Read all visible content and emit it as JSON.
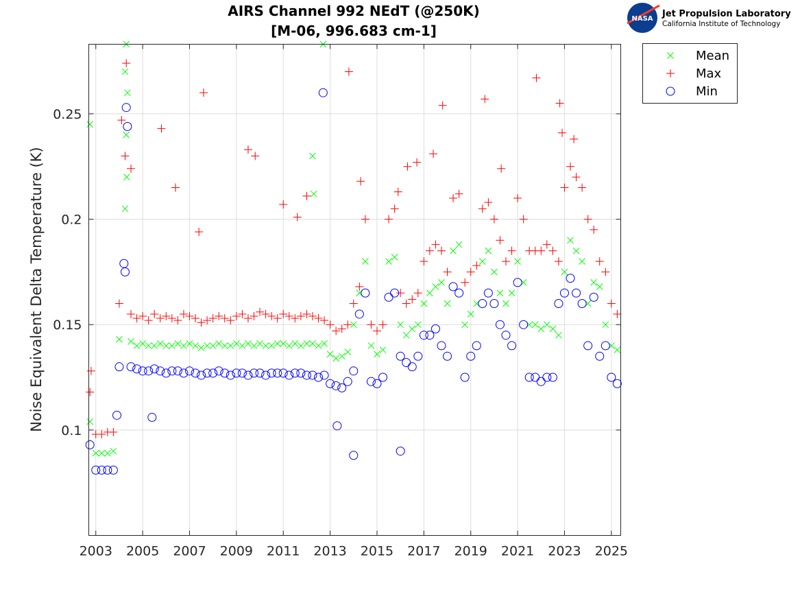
{
  "logo": {
    "emblem": "NASA",
    "name": "Jet Propulsion Laboratory",
    "subtitle": "California Institute of Technology"
  },
  "chart_data": {
    "type": "scatter",
    "title": [
      "AIRS Channel 992 NEdT (@250K)",
      "[M-06, 996.683 cm-1]"
    ],
    "xlabel": "",
    "ylabel": "Noise Equivalent Delta Temperature (K)",
    "xlim": [
      2002.7,
      2025.4
    ],
    "ylim": [
      0.05,
      0.283
    ],
    "x_ticks": [
      2003,
      2005,
      2007,
      2009,
      2011,
      2013,
      2015,
      2017,
      2019,
      2021,
      2023,
      2025
    ],
    "x_tick_labels": [
      "2003",
      "2005",
      "2007",
      "2009",
      "2011",
      "2013",
      "2015",
      "2017",
      "2019",
      "2021",
      "2023",
      "2025"
    ],
    "y_ticks": [
      0.1,
      0.15,
      0.2,
      0.25
    ],
    "y_tick_labels": [
      "0.1",
      "0.15",
      "0.2",
      "0.25"
    ],
    "grid": true,
    "legend_position": "outside-top-right",
    "legend": [
      "Mean",
      "Max",
      "Min"
    ],
    "colors": {
      "Mean": "#00ff00",
      "Max": "#ff0000",
      "Min": "#0000ff"
    },
    "markers": {
      "Mean": "x",
      "Max": "+",
      "Min": "o"
    },
    "x": [
      2002.75,
      2003.0,
      2003.25,
      2003.5,
      2003.75,
      2004.0,
      2004.25,
      2004.5,
      2004.75,
      2005.0,
      2005.25,
      2005.5,
      2005.75,
      2006.0,
      2006.25,
      2006.5,
      2006.75,
      2007.0,
      2007.25,
      2007.5,
      2007.75,
      2008.0,
      2008.25,
      2008.5,
      2008.75,
      2009.0,
      2009.25,
      2009.5,
      2009.75,
      2010.0,
      2010.25,
      2010.5,
      2010.75,
      2011.0,
      2011.25,
      2011.5,
      2011.75,
      2012.0,
      2012.25,
      2012.5,
      2012.75,
      2013.0,
      2013.25,
      2013.5,
      2013.75,
      2014.0,
      2014.25,
      2014.5,
      2014.75,
      2015.0,
      2015.25,
      2015.5,
      2015.75,
      2016.0,
      2016.25,
      2016.5,
      2016.75,
      2017.0,
      2017.25,
      2017.5,
      2017.75,
      2018.0,
      2018.25,
      2018.5,
      2018.75,
      2019.0,
      2019.25,
      2019.5,
      2019.75,
      2020.0,
      2020.25,
      2020.5,
      2020.75,
      2021.0,
      2021.25,
      2021.5,
      2021.75,
      2022.0,
      2022.25,
      2022.5,
      2022.75,
      2023.0,
      2023.25,
      2023.5,
      2023.75,
      2024.0,
      2024.25,
      2024.5,
      2024.75,
      2025.0,
      2025.25
    ],
    "series": [
      {
        "name": "Mean",
        "values": [
          0.104,
          0.089,
          0.089,
          0.089,
          0.09,
          0.143,
          0.27,
          0.142,
          0.14,
          0.141,
          0.14,
          0.14,
          0.141,
          0.14,
          0.14,
          0.141,
          0.14,
          0.141,
          0.14,
          0.139,
          0.14,
          0.14,
          0.141,
          0.14,
          0.14,
          0.141,
          0.14,
          0.141,
          0.14,
          0.141,
          0.14,
          0.14,
          0.141,
          0.141,
          0.14,
          0.141,
          0.14,
          0.141,
          0.141,
          0.14,
          0.141,
          0.136,
          0.134,
          0.135,
          0.137,
          0.15,
          0.165,
          0.18,
          0.14,
          0.136,
          0.138,
          0.18,
          0.182,
          0.15,
          0.145,
          0.148,
          0.15,
          0.16,
          0.165,
          0.168,
          0.17,
          0.16,
          0.185,
          0.188,
          0.15,
          0.155,
          0.16,
          0.18,
          0.185,
          0.175,
          0.165,
          0.16,
          0.165,
          0.18,
          0.17,
          0.15,
          0.15,
          0.148,
          0.15,
          0.148,
          0.145,
          0.175,
          0.19,
          0.185,
          0.18,
          0.16,
          0.17,
          0.168,
          0.15,
          0.14,
          0.138
        ],
        "outliers": [
          [
            2002.75,
            0.245
          ],
          [
            2004.3,
            0.283
          ],
          [
            2004.35,
            0.26
          ],
          [
            2004.3,
            0.24
          ],
          [
            2004.32,
            0.22
          ],
          [
            2004.25,
            0.205
          ],
          [
            2012.25,
            0.23
          ],
          [
            2012.3,
            0.212
          ],
          [
            2012.7,
            0.283
          ]
        ]
      },
      {
        "name": "Max",
        "values": [
          0.118,
          0.098,
          0.098,
          0.099,
          0.099,
          0.16,
          0.23,
          0.155,
          0.153,
          0.154,
          0.152,
          0.155,
          0.153,
          0.154,
          0.153,
          0.152,
          0.155,
          0.154,
          0.153,
          0.151,
          0.152,
          0.153,
          0.154,
          0.153,
          0.152,
          0.154,
          0.155,
          0.153,
          0.154,
          0.156,
          0.155,
          0.154,
          0.153,
          0.155,
          0.154,
          0.153,
          0.154,
          0.155,
          0.154,
          0.153,
          0.152,
          0.15,
          0.147,
          0.148,
          0.15,
          0.16,
          0.168,
          0.2,
          0.15,
          0.147,
          0.15,
          0.2,
          0.205,
          0.165,
          0.16,
          0.162,
          0.165,
          0.18,
          0.185,
          0.188,
          0.185,
          0.175,
          0.21,
          0.212,
          0.17,
          0.175,
          0.178,
          0.205,
          0.208,
          0.2,
          0.19,
          0.18,
          0.185,
          0.21,
          0.2,
          0.185,
          0.185,
          0.185,
          0.188,
          0.185,
          0.18,
          0.215,
          0.225,
          0.22,
          0.215,
          0.2,
          0.195,
          0.18,
          0.175,
          0.16,
          0.155
        ],
        "outliers": [
          [
            2002.8,
            0.128
          ],
          [
            2004.3,
            0.274
          ],
          [
            2004.1,
            0.247
          ],
          [
            2004.5,
            0.224
          ],
          [
            2005.8,
            0.243
          ],
          [
            2006.4,
            0.215
          ],
          [
            2007.6,
            0.26
          ],
          [
            2007.4,
            0.194
          ],
          [
            2009.5,
            0.233
          ],
          [
            2009.8,
            0.23
          ],
          [
            2011.0,
            0.207
          ],
          [
            2011.6,
            0.201
          ],
          [
            2012.0,
            0.211
          ],
          [
            2013.8,
            0.27
          ],
          [
            2014.3,
            0.218
          ],
          [
            2015.9,
            0.213
          ],
          [
            2016.3,
            0.225
          ],
          [
            2016.7,
            0.227
          ],
          [
            2017.4,
            0.231
          ],
          [
            2017.8,
            0.254
          ],
          [
            2019.6,
            0.257
          ],
          [
            2020.3,
            0.224
          ],
          [
            2021.8,
            0.267
          ],
          [
            2022.8,
            0.255
          ],
          [
            2022.9,
            0.241
          ],
          [
            2023.4,
            0.238
          ]
        ]
      },
      {
        "name": "Min",
        "values": [
          0.093,
          0.081,
          0.081,
          0.081,
          0.081,
          0.13,
          0.175,
          0.13,
          0.129,
          0.128,
          0.128,
          0.129,
          0.128,
          0.127,
          0.128,
          0.128,
          0.127,
          0.128,
          0.127,
          0.126,
          0.127,
          0.127,
          0.128,
          0.127,
          0.126,
          0.127,
          0.127,
          0.126,
          0.127,
          0.127,
          0.126,
          0.127,
          0.127,
          0.127,
          0.126,
          0.127,
          0.127,
          0.126,
          0.126,
          0.125,
          0.126,
          0.122,
          0.121,
          0.12,
          0.123,
          0.128,
          0.155,
          0.165,
          0.123,
          0.122,
          0.125,
          0.163,
          0.165,
          0.135,
          0.132,
          0.13,
          0.135,
          0.145,
          0.145,
          0.148,
          0.14,
          0.135,
          0.168,
          0.165,
          0.125,
          0.135,
          0.14,
          0.16,
          0.165,
          0.16,
          0.15,
          0.145,
          0.14,
          0.17,
          0.15,
          0.125,
          0.125,
          0.123,
          0.125,
          0.125,
          0.16,
          0.165,
          0.172,
          0.165,
          0.16,
          0.14,
          0.163,
          0.135,
          0.14,
          0.125,
          0.122
        ],
        "outliers": [
          [
            2004.3,
            0.253
          ],
          [
            2004.35,
            0.244
          ],
          [
            2004.2,
            0.179
          ],
          [
            2003.9,
            0.107
          ],
          [
            2005.4,
            0.106
          ],
          [
            2012.7,
            0.26
          ],
          [
            2013.3,
            0.102
          ],
          [
            2014.0,
            0.088
          ],
          [
            2016.0,
            0.09
          ]
        ]
      }
    ]
  }
}
